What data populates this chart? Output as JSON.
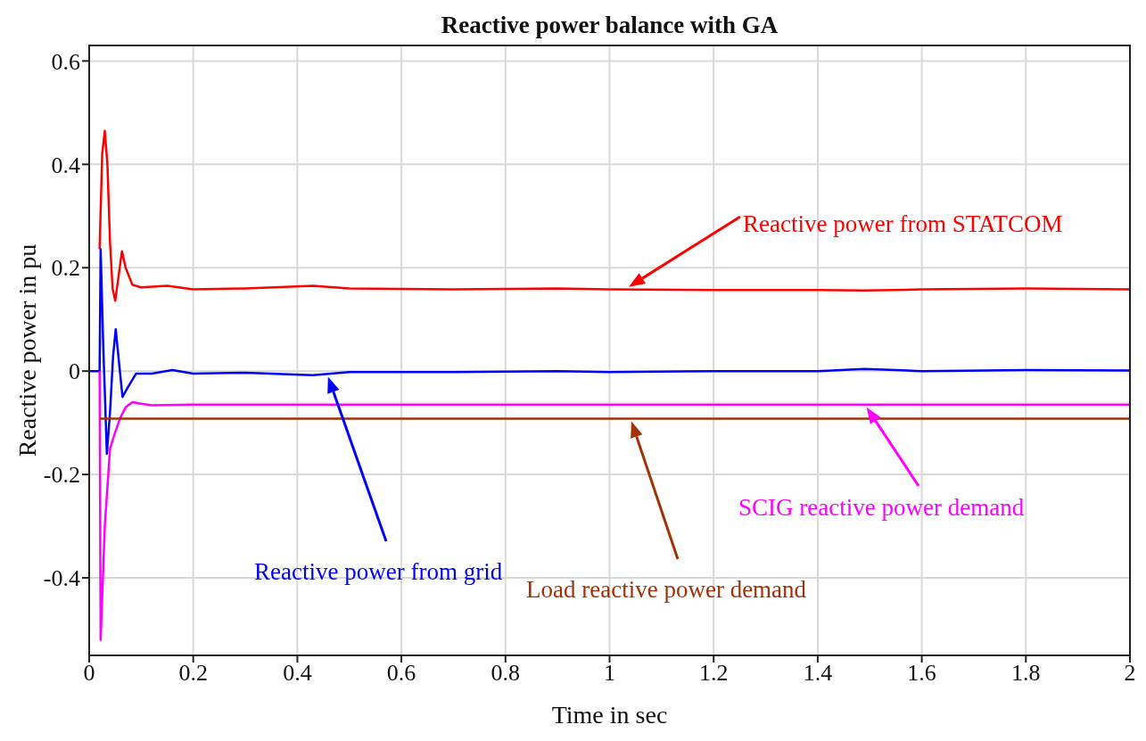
{
  "chart_data": {
    "type": "line",
    "title": "Reactive power balance with GA",
    "xlabel": "Time in sec",
    "ylabel": "Reactive power in pu",
    "xlim": [
      0,
      2
    ],
    "ylim": [
      -0.55,
      0.63
    ],
    "xticks": [
      0,
      0.2,
      0.4,
      0.6,
      0.8,
      1,
      1.2,
      1.4,
      1.6,
      1.8,
      2
    ],
    "yticks": [
      -0.4,
      -0.2,
      0,
      0.2,
      0.4,
      0.6
    ],
    "grid": true,
    "marker": "none",
    "line_style": "solid",
    "series": [
      {
        "name": "Reactive power from STATCOM",
        "color": "#ff0000",
        "x": [
          0.02,
          0.025,
          0.03,
          0.035,
          0.04,
          0.045,
          0.05,
          0.056,
          0.063,
          0.07,
          0.083,
          0.1,
          0.15,
          0.2,
          0.3,
          0.43,
          0.5,
          0.7,
          0.9,
          1.0,
          1.2,
          1.4,
          1.49,
          1.6,
          1.8,
          2.0
        ],
        "values": [
          0.236,
          0.42,
          0.465,
          0.4,
          0.25,
          0.16,
          0.136,
          0.18,
          0.232,
          0.2,
          0.167,
          0.162,
          0.165,
          0.158,
          0.16,
          0.165,
          0.16,
          0.158,
          0.16,
          0.158,
          0.157,
          0.157,
          0.156,
          0.158,
          0.16,
          0.158
        ]
      },
      {
        "name": "Reactive power from grid",
        "color": "#0000ff",
        "x": [
          0,
          0.02,
          0.022,
          0.027,
          0.034,
          0.04,
          0.046,
          0.051,
          0.057,
          0.064,
          0.075,
          0.09,
          0.12,
          0.16,
          0.2,
          0.3,
          0.43,
          0.5,
          0.7,
          0.9,
          1.0,
          1.2,
          1.4,
          1.49,
          1.6,
          1.8,
          2.0
        ],
        "values": [
          0,
          0,
          0.236,
          0.05,
          -0.16,
          -0.08,
          0.03,
          0.081,
          0.02,
          -0.05,
          -0.03,
          -0.005,
          -0.005,
          0.002,
          -0.005,
          -0.003,
          -0.008,
          -0.002,
          -0.002,
          0,
          -0.002,
          0,
          0,
          0.004,
          0,
          0.002,
          0.001
        ]
      },
      {
        "name": "SCIG reactive power demand",
        "color": "#ff00ff",
        "x": [
          0.02,
          0.022,
          0.03,
          0.04,
          0.05,
          0.06,
          0.07,
          0.083,
          0.1,
          0.12,
          0.2,
          2.0
        ],
        "values": [
          0,
          -0.52,
          -0.3,
          -0.15,
          -0.118,
          -0.09,
          -0.07,
          -0.06,
          -0.063,
          -0.066,
          -0.065,
          -0.065
        ]
      },
      {
        "name": "Load reactive power demand",
        "color": "#a0320a",
        "x": [
          0.02,
          2.0
        ],
        "values": [
          -0.092,
          -0.092
        ]
      }
    ]
  }
}
